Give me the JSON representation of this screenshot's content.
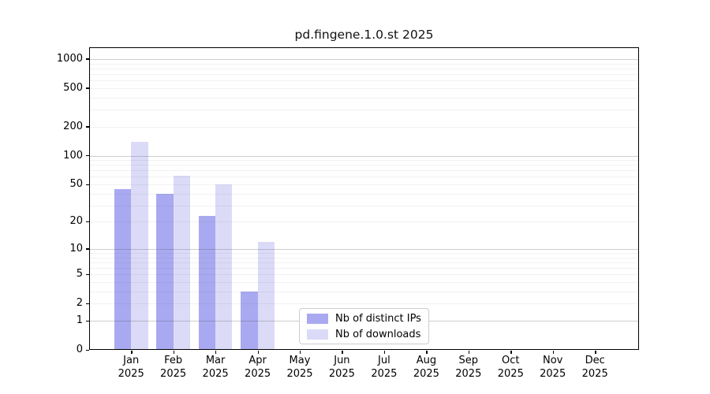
{
  "title": "pd.fingene.1.0.st 2025",
  "chart_data": {
    "type": "bar",
    "title": "pd.fingene.1.0.st 2025",
    "categories": [
      "Jan",
      "Feb",
      "Mar",
      "Apr",
      "May",
      "Jun",
      "Jul",
      "Aug",
      "Sep",
      "Oct",
      "Nov",
      "Dec"
    ],
    "category_year": "2025",
    "series": [
      {
        "name": "Nb of distinct IPs",
        "color": "#a9a9f1",
        "values": [
          45,
          40,
          23,
          3,
          0,
          0,
          0,
          0,
          0,
          0,
          0,
          0
        ]
      },
      {
        "name": "Nb of downloads",
        "color": "#dbdbf7",
        "values": [
          140,
          62,
          50,
          12,
          0,
          0,
          0,
          0,
          0,
          0,
          0,
          0
        ]
      }
    ],
    "yscale": "log1p",
    "yticks": [
      1000,
      500,
      200,
      100,
      50,
      20,
      10,
      5,
      2,
      1,
      0
    ],
    "ylim": [
      0,
      1320
    ],
    "xlabel": "",
    "ylabel": "",
    "grid": "horizontal",
    "legend_position": "lower-center"
  },
  "colors": {
    "distinct_ips": "#a9a9f1",
    "downloads": "#dbdbf7",
    "grid_major": "#c9c9c9",
    "grid_minor": "#efefef",
    "axis": "#000000"
  }
}
